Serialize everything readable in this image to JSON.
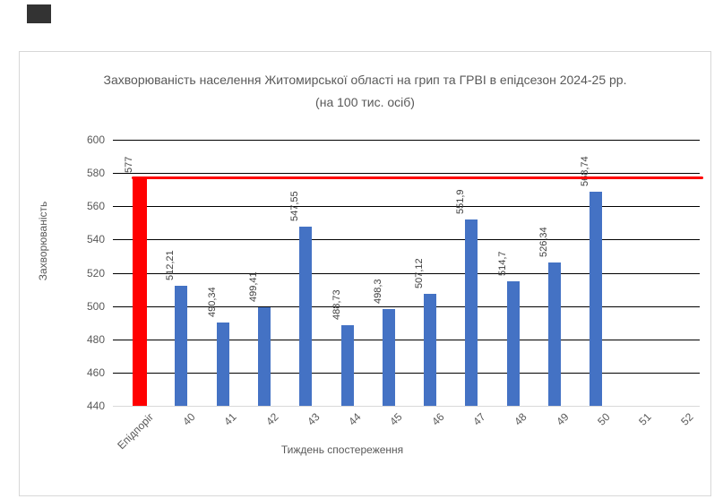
{
  "artifact": {
    "note": "dark rectangle fragment at top-left of screen"
  },
  "chart_data": {
    "type": "bar",
    "title": "Захворюваність населення Житомирської області на грип та ГРВІ в епідсезон 2024-25 рр.",
    "subtitle": "(на 100 тис. осіб)",
    "xlabel": "Тиждень спостереження",
    "ylabel": "Захворюваність",
    "ylim": [
      440,
      600
    ],
    "ytick_step": 20,
    "grid": true,
    "legend": "none",
    "categories": [
      "Епідпоріг",
      "40",
      "41",
      "42",
      "43",
      "44",
      "45",
      "46",
      "47",
      "48",
      "49",
      "50",
      "51",
      "52"
    ],
    "values": [
      577,
      512.21,
      490.34,
      499.41,
      547.55,
      488.73,
      498.3,
      507.12,
      551.9,
      514.7,
      526.34,
      568.74,
      null,
      null
    ],
    "value_labels": [
      "577",
      "512,21",
      "490,34",
      "499,41",
      "547,55",
      "488,73",
      "498,3",
      "507,12",
      "551,9",
      "514,7",
      "526,34",
      "568,74",
      "",
      ""
    ],
    "threshold_line": {
      "name": "Епідпоріг",
      "value": 577,
      "color": "#ff0000"
    },
    "colors": {
      "bar_default": "#4472c4",
      "bar_first": "#ff0000",
      "gridline": "#000000",
      "baseline": "#d9d9d9",
      "axis_text": "#595959",
      "data_label": "#404040"
    }
  }
}
